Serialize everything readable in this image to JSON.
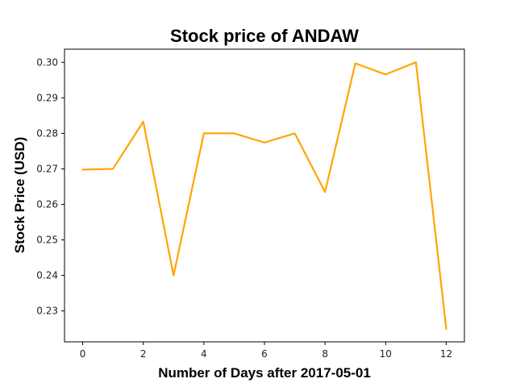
{
  "chart_data": {
    "type": "line",
    "title": "Stock price of ANDAW",
    "xlabel": "Number of Days after 2017-05-01",
    "ylabel": "Stock Price (USD)",
    "x": [
      0,
      1,
      2,
      3,
      4,
      5,
      6,
      7,
      8,
      9,
      10,
      11,
      12
    ],
    "series": [
      {
        "values": [
          0.2698,
          0.27,
          0.2833,
          0.24,
          0.28,
          0.28,
          0.2774,
          0.28,
          0.2635,
          0.2997,
          0.2966,
          0.3,
          0.225
        ]
      }
    ],
    "xlim": [
      -0.6,
      12.6
    ],
    "ylim": [
      0.2213,
      0.3037
    ],
    "xticks": [
      0,
      2,
      4,
      6,
      8,
      10,
      12
    ],
    "xtick_labels": [
      "0",
      "2",
      "4",
      "6",
      "8",
      "10",
      "12"
    ],
    "yticks": [
      0.23,
      0.24,
      0.25,
      0.26,
      0.27,
      0.28,
      0.29,
      0.3
    ],
    "ytick_labels": [
      "0.23",
      "0.24",
      "0.25",
      "0.26",
      "0.27",
      "0.28",
      "0.29",
      "0.30"
    ],
    "grid": false,
    "legend": "none",
    "colors": {
      "line": "#ffa500",
      "axes": "#000000",
      "background": "#ffffff"
    }
  }
}
